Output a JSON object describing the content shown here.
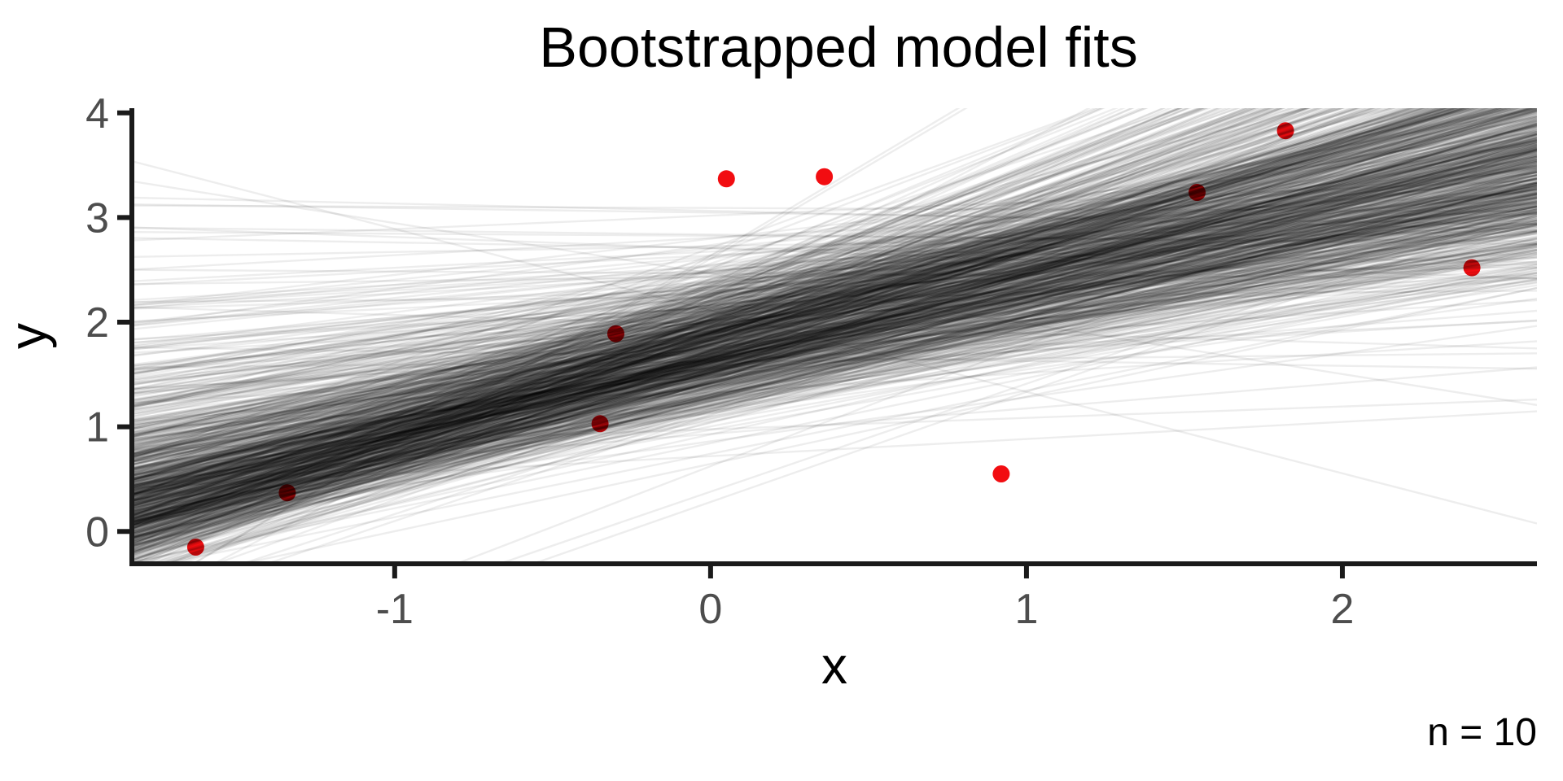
{
  "chart_data": {
    "type": "scatter",
    "title": "Bootstrapped model fits",
    "xlabel": "x",
    "ylabel": "y",
    "caption": "n = 10",
    "n_points": 10,
    "points": [
      {
        "x": -1.63,
        "y": -0.15
      },
      {
        "x": -1.34,
        "y": 0.37
      },
      {
        "x": -0.35,
        "y": 1.03
      },
      {
        "x": -0.3,
        "y": 1.89
      },
      {
        "x": 0.05,
        "y": 3.37
      },
      {
        "x": 0.36,
        "y": 3.39
      },
      {
        "x": 0.92,
        "y": 0.55
      },
      {
        "x": 1.54,
        "y": 3.24
      },
      {
        "x": 1.82,
        "y": 3.83
      },
      {
        "x": 2.41,
        "y": 2.52
      }
    ],
    "bootstrap_lines": {
      "n_lines": 1000,
      "method": "ols-resample",
      "central_fit": {
        "intercept": 1.75,
        "slope": 0.74
      },
      "line_color": "#000000",
      "line_opacity": 0.07,
      "line_width": 2.4,
      "seed": 42
    },
    "xlim": [
      -1.832,
      2.616
    ],
    "ylim": [
      -0.309,
      4.045
    ],
    "x_ticks": [
      {
        "value": -1,
        "label": "-1"
      },
      {
        "value": 0,
        "label": "0"
      },
      {
        "value": 1,
        "label": "1"
      },
      {
        "value": 2,
        "label": "2"
      }
    ],
    "y_ticks": [
      {
        "value": 0,
        "label": "0"
      },
      {
        "value": 1,
        "label": "1"
      },
      {
        "value": 2,
        "label": "2"
      },
      {
        "value": 3,
        "label": "3"
      },
      {
        "value": 4,
        "label": "4"
      }
    ],
    "grid": false,
    "legend": false,
    "colors": {
      "background": "#ffffff",
      "point": "#f20d11",
      "axis_line": "#1a1a1a",
      "tick_mark": "#1a1a1a",
      "tick_label": "#4d4d4d",
      "title_text": "#000000"
    }
  }
}
